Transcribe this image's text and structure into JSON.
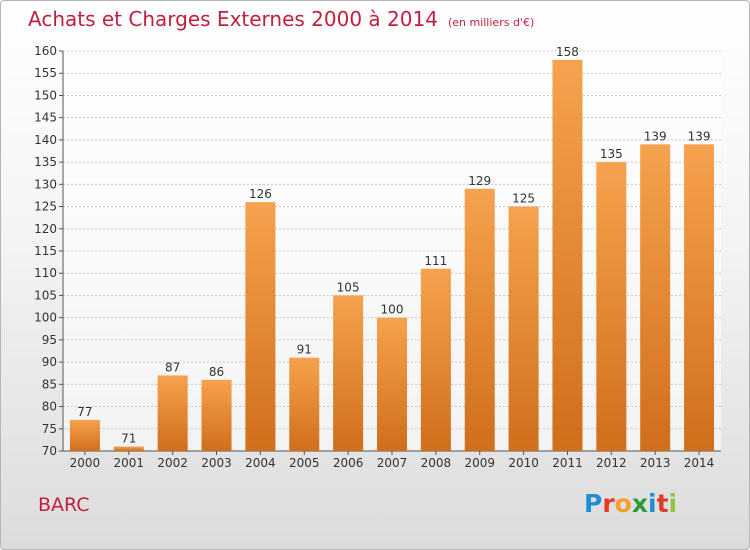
{
  "header": {
    "title": "Achats et Charges Externes 2000 à 2014",
    "subtitle": "(en milliers d'€)"
  },
  "footer": {
    "place": "BARC",
    "brand": "Proxiti",
    "brand_colors": [
      "#1d8fd1",
      "#e03b2a",
      "#f2a22b",
      "#2e9b3c",
      "#1d8fd1",
      "#e03b2a",
      "#8dc63f"
    ]
  },
  "colors": {
    "title": "#c2203c",
    "bar_top": "#f6a24e",
    "bar_bottom": "#d06e1a",
    "grid": "#c8c8c8",
    "axis": "#555555"
  },
  "chart_data": {
    "type": "bar",
    "title": "Achats et Charges Externes 2000 à 2014",
    "subtitle": "(en milliers d'€)",
    "categories": [
      "2000",
      "2001",
      "2002",
      "2003",
      "2004",
      "2005",
      "2006",
      "2007",
      "2008",
      "2009",
      "2010",
      "2011",
      "2012",
      "2013",
      "2014"
    ],
    "values": [
      77,
      71,
      87,
      86,
      126,
      91,
      105,
      100,
      111,
      129,
      125,
      158,
      135,
      139,
      139
    ],
    "ylim": [
      70,
      160
    ],
    "yticks": [
      70,
      75,
      80,
      85,
      90,
      95,
      100,
      105,
      110,
      115,
      120,
      125,
      130,
      135,
      140,
      145,
      150,
      155,
      160
    ],
    "grid": true,
    "xlabel": "",
    "ylabel": ""
  }
}
